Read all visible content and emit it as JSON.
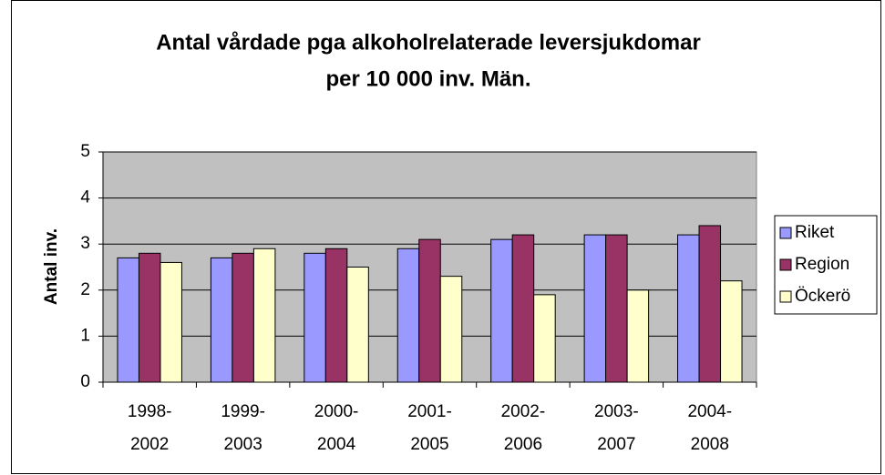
{
  "chart_data": {
    "type": "bar",
    "title": [
      "Antal vårdade pga alkoholrelaterade leversjukdomar",
      "per 10 000 inv. Män."
    ],
    "y_label": "Antal inv.",
    "categories": [
      "1998-2002",
      "1999-2003",
      "2000-2004",
      "2001-2005",
      "2002-2006",
      "2003-2007",
      "2004-2008"
    ],
    "series": [
      {
        "name": "Riket",
        "color": "#9999ff",
        "values": [
          2.7,
          2.7,
          2.8,
          2.9,
          3.1,
          3.2,
          3.2
        ]
      },
      {
        "name": "Region",
        "color": "#993366",
        "values": [
          2.8,
          2.8,
          2.9,
          3.1,
          3.2,
          3.2,
          3.4
        ]
      },
      {
        "name": "Öckerö",
        "color": "#ffffcc",
        "values": [
          2.6,
          2.9,
          2.5,
          2.3,
          1.9,
          2.0,
          2.2
        ]
      }
    ],
    "ylim": [
      0,
      5
    ],
    "yticks": [
      0,
      1,
      2,
      3,
      4,
      5
    ],
    "grid": true,
    "legend": "right"
  }
}
